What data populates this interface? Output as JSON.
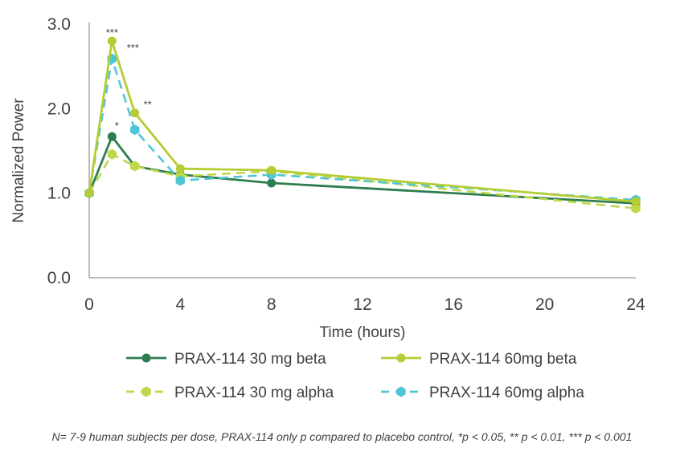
{
  "chart_data": {
    "type": "line",
    "title": "",
    "xlabel": "Time (hours)",
    "ylabel": "Normalized Power",
    "xlim": [
      0,
      24
    ],
    "ylim": [
      0.0,
      3.0
    ],
    "x_ticks": [
      0,
      4,
      8,
      12,
      16,
      20,
      24
    ],
    "y_ticks": [
      0.0,
      1.0,
      2.0,
      3.0
    ],
    "y_tick_labels": [
      "0.0",
      "1.0",
      "2.0",
      "3.0"
    ],
    "grid": false,
    "legend_position": "bottom",
    "series": [
      {
        "name": "PRAX-114 30 mg beta",
        "color": "#2e7d4f",
        "dashed": false,
        "marker": "circle",
        "x": [
          0,
          1,
          2,
          4,
          8,
          24
        ],
        "y": [
          1.0,
          1.67,
          1.32,
          1.22,
          1.12,
          0.88
        ]
      },
      {
        "name": "PRAX-114 60mg beta",
        "color": "#b5cc34",
        "dashed": false,
        "marker": "circle",
        "x": [
          0,
          1,
          2,
          4,
          8,
          24
        ],
        "y": [
          1.0,
          2.8,
          1.95,
          1.29,
          1.27,
          0.9
        ]
      },
      {
        "name": "PRAX-114 30 mg alpha",
        "color": "#bed84a",
        "dashed": true,
        "marker": "hexagon",
        "x": [
          0,
          1,
          2,
          4,
          8,
          24
        ],
        "y": [
          1.0,
          1.46,
          1.32,
          1.2,
          1.26,
          0.82
        ]
      },
      {
        "name": "PRAX-114 60mg alpha",
        "color": "#4fc6d6",
        "dashed": true,
        "marker": "hexagon",
        "x": [
          0,
          1,
          2,
          4,
          8,
          24
        ],
        "y": [
          1.0,
          2.59,
          1.75,
          1.15,
          1.22,
          0.92
        ]
      }
    ],
    "annotations": [
      {
        "text": "***",
        "x": 1,
        "y": 2.8
      },
      {
        "text": "***",
        "x": 1,
        "y": 2.59
      },
      {
        "text": "**",
        "x": 2,
        "y": 1.95
      },
      {
        "text": "*",
        "x": 1,
        "y": 1.67
      }
    ]
  },
  "footnote": "N= 7-9 human subjects per dose, PRAX-114 only p compared to placebo control, *p < 0.05, **  p < 0.01, *** p < 0.001"
}
